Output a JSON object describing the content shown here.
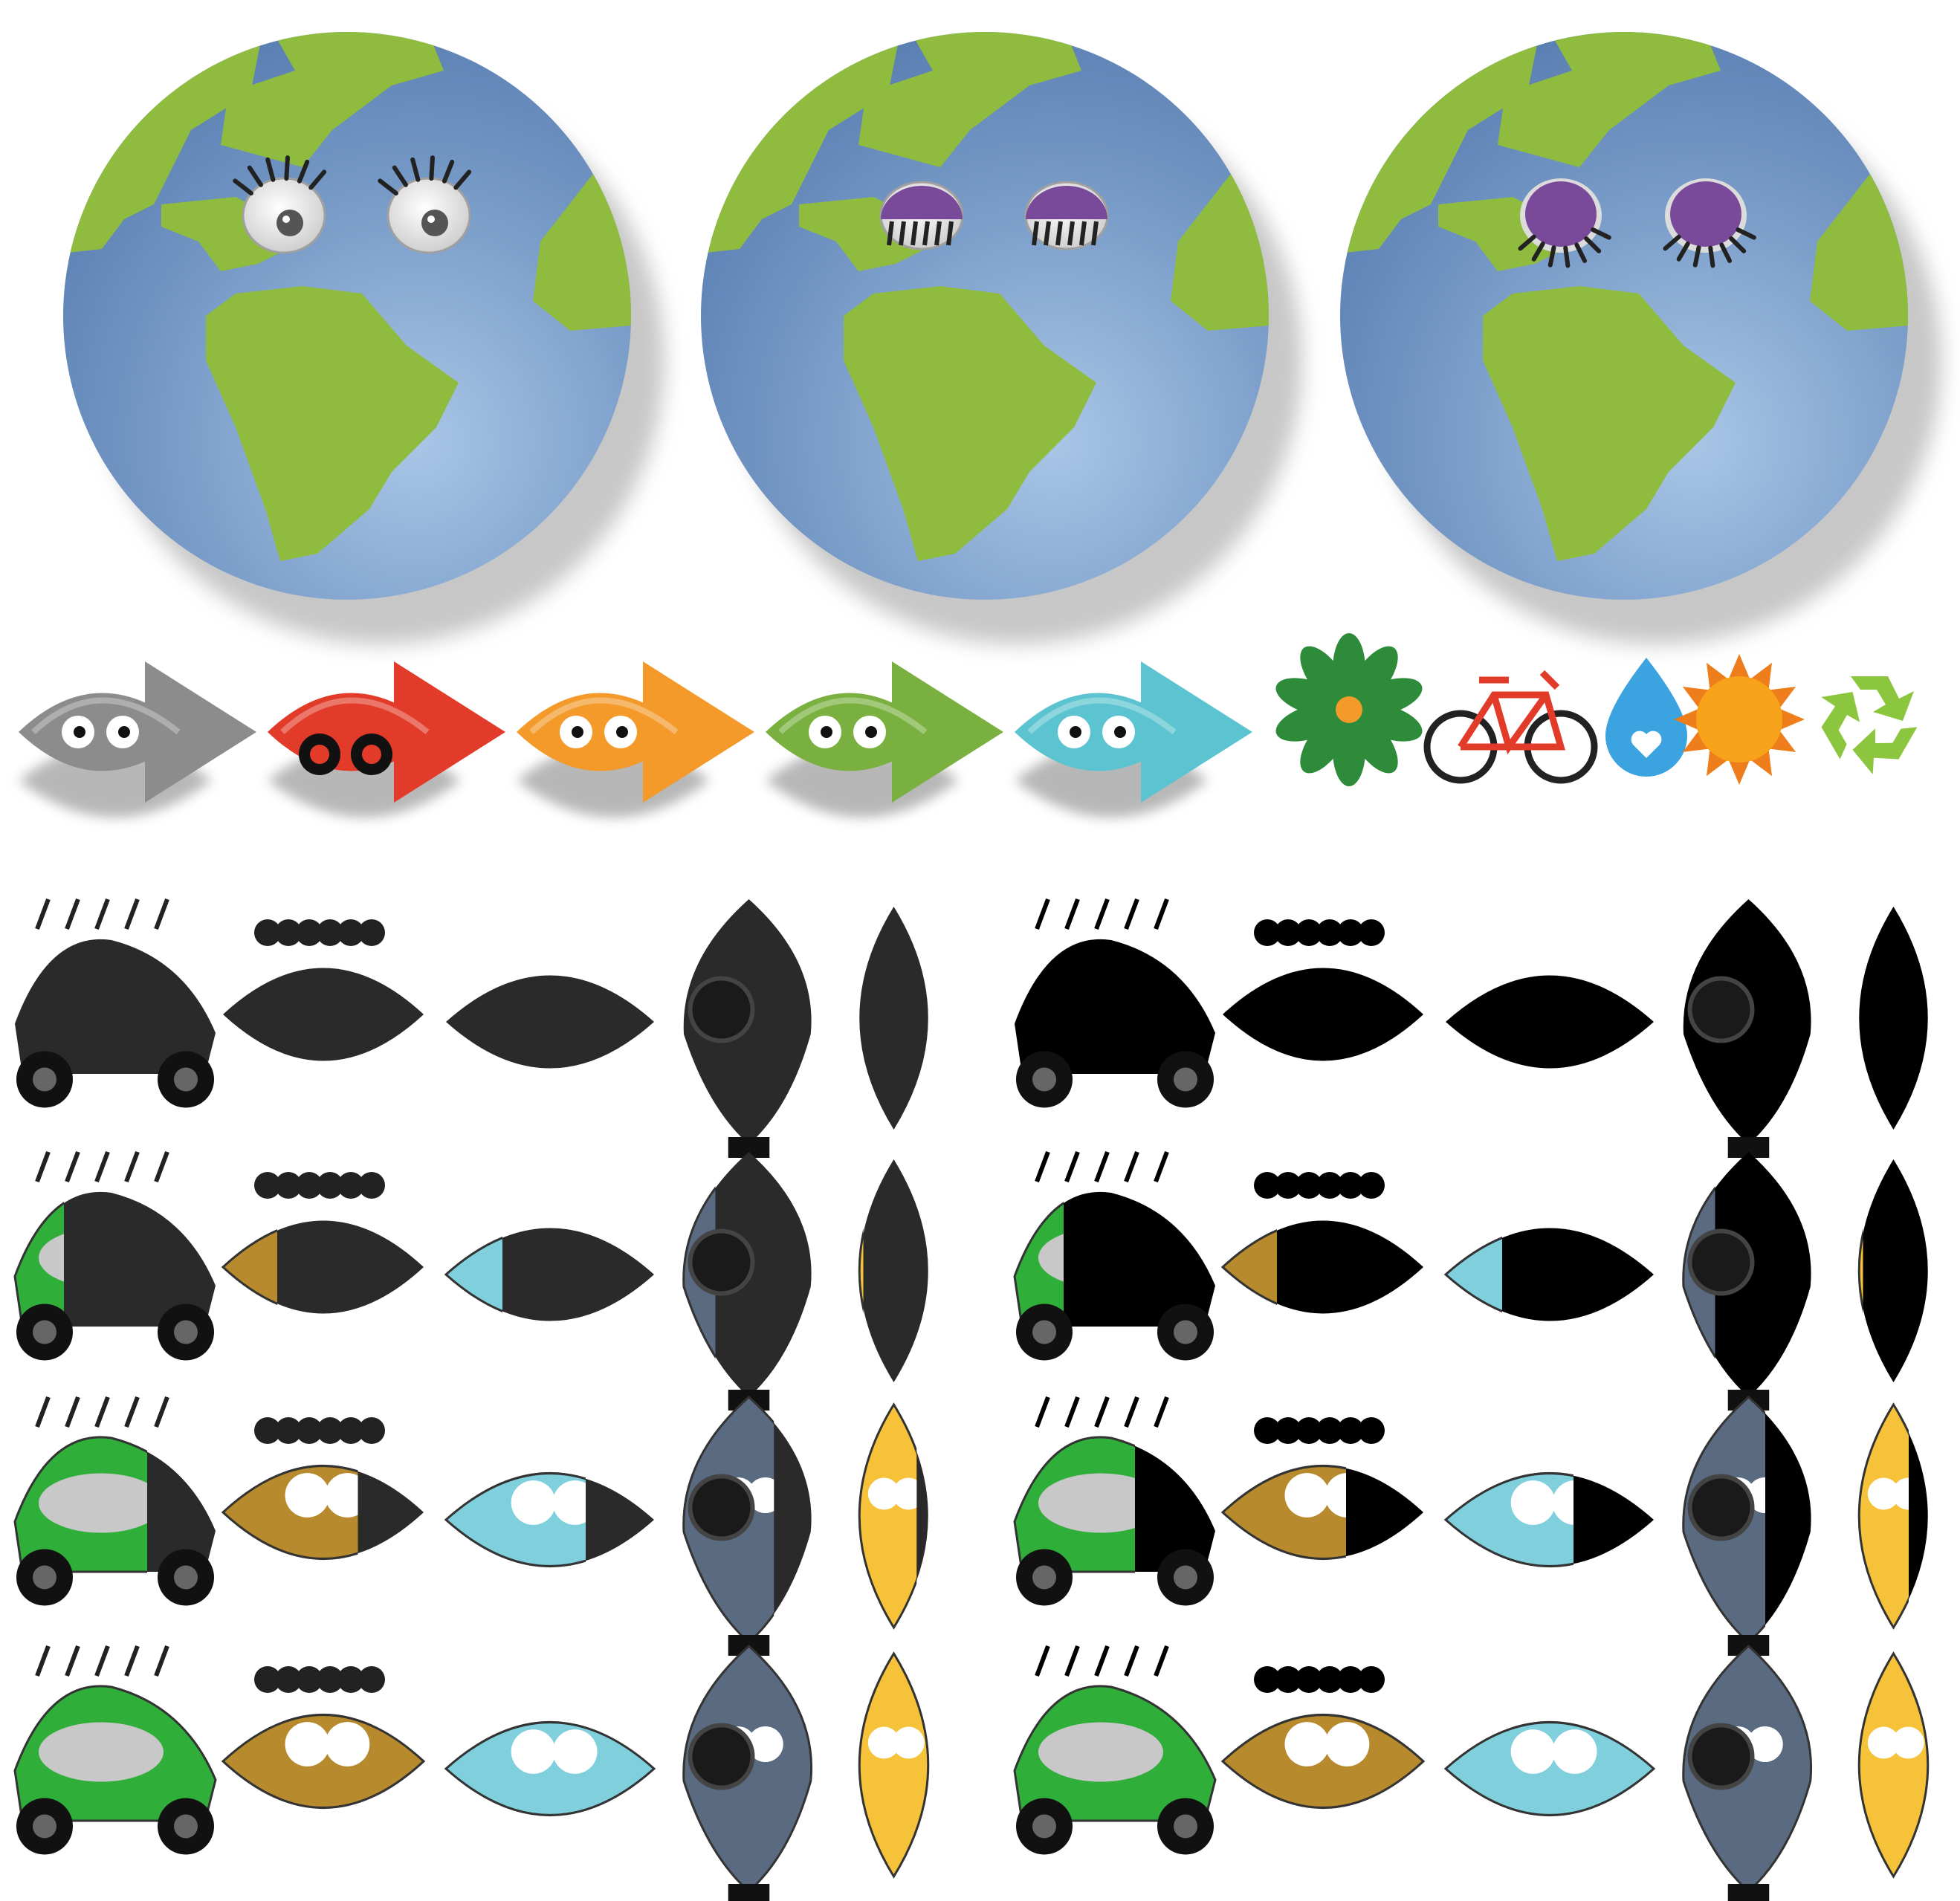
{
  "sheet": {
    "title": ""
  },
  "colors": {
    "ocean": "#6a8fbf",
    "ocean_light": "#8fb1d8",
    "land": "#8fbc3f",
    "shadow": "#9a9a9a",
    "eyelid": "#7a4a9a",
    "leaf_gray": "#8c8c8c",
    "leaf_red": "#e23b2a",
    "leaf_orange": "#f39a2a",
    "leaf_green": "#7ab040",
    "leaf_teal": "#5cc4d0",
    "flower": "#2e8b3a",
    "flower_center": "#f39a2a",
    "bike": "#e23b2a",
    "drop": "#3aa3e0",
    "sun": "#f7a21b",
    "recycle": "#8cc63f",
    "silhouette": "#000000"
  },
  "earths": [
    {
      "name": "earth-eyes-open",
      "eyes": "open"
    },
    {
      "name": "earth-eyes-half",
      "eyes": "half"
    },
    {
      "name": "earth-eyes-closed",
      "eyes": "closed"
    }
  ],
  "leaf_arrows": [
    {
      "name": "gray-leaf-arrow",
      "color": "#8c8c8c",
      "face": "eyes"
    },
    {
      "name": "red-leaf-arrow",
      "color": "#e23b2a",
      "face": "wheels"
    },
    {
      "name": "orange-leaf-arrow",
      "color": "#f39a2a",
      "face": "eyes"
    },
    {
      "name": "green-leaf-arrow",
      "color": "#7ab040",
      "face": "eyes"
    },
    {
      "name": "teal-leaf-arrow",
      "color": "#5cc4d0",
      "face": "eyes"
    }
  ],
  "eco_icons": [
    "flower-icon",
    "bicycle-icon",
    "water-drop-icon",
    "sun-icon",
    "recycle-icon"
  ],
  "characters": [
    {
      "name": "car-character",
      "fill": "#2fae3a"
    },
    {
      "name": "leopard-character",
      "fill": "#b88a2e"
    },
    {
      "name": "water-character",
      "fill": "#7fd0dc"
    },
    {
      "name": "trash-character",
      "fill": "#5a6a80"
    },
    {
      "name": "can-character",
      "fill": "#f5c23a"
    }
  ],
  "fill_progress_left": [
    0,
    0.3,
    0.65,
    1
  ],
  "fill_progress_right": [
    0,
    0.3,
    0.6,
    1
  ]
}
